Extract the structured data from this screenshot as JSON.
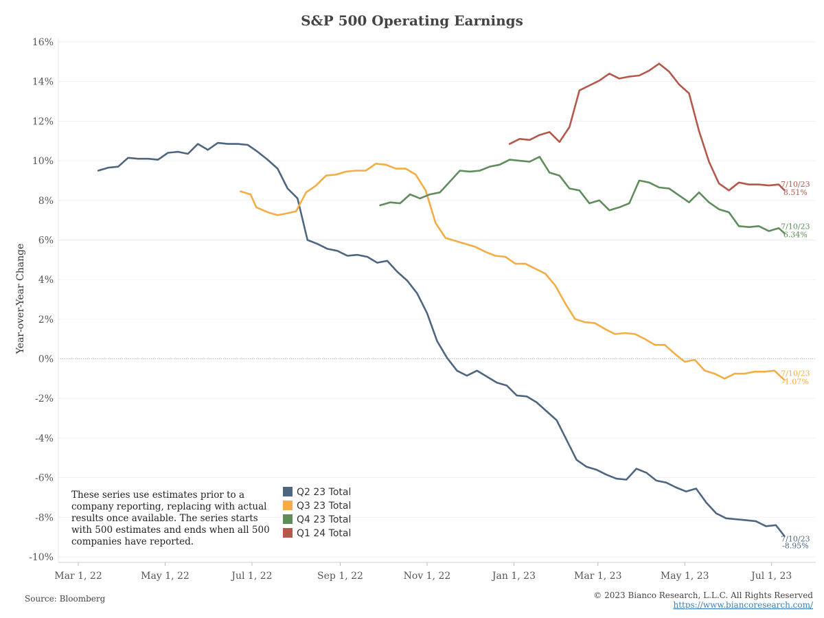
{
  "chart_data": {
    "type": "line",
    "title": "S&P 500 Operating Earnings",
    "xlabel": "",
    "ylabel": "Year-over-Year Change",
    "ylim": [
      -10,
      16
    ],
    "y_ticks": [
      16,
      14,
      12,
      10,
      8,
      6,
      4,
      2,
      0,
      -2,
      -4,
      -6,
      -8,
      -10
    ],
    "y_tick_labels": [
      "16%",
      "14%",
      "12%",
      "10%",
      "8%",
      "6%",
      "4%",
      "2%",
      "0%",
      "-2%",
      "-4%",
      "-6%",
      "-8%",
      "-10%"
    ],
    "x_range": [
      "2022-02-15",
      "2023-08-01"
    ],
    "x_ticks": [
      {
        "date": "2022-03-01",
        "label": "Mar 1, 22"
      },
      {
        "date": "2022-05-01",
        "label": "May 1, 22"
      },
      {
        "date": "2022-07-01",
        "label": "Jul 1, 22"
      },
      {
        "date": "2022-09-01",
        "label": "Sep 1, 22"
      },
      {
        "date": "2022-11-01",
        "label": "Nov 1, 22"
      },
      {
        "date": "2023-01-01",
        "label": "Jan 1, 23"
      },
      {
        "date": "2023-03-01",
        "label": "Mar 1, 23"
      },
      {
        "date": "2023-05-01",
        "label": "May 1, 23"
      },
      {
        "date": "2023-07-01",
        "label": "Jul 1, 23"
      }
    ],
    "grid": true,
    "legend_position": "bottom-center",
    "series": [
      {
        "name": "Q2 23 Total",
        "color": "#4e6580",
        "end_label": "7/10/23",
        "end_value_label": "-8.95%",
        "points": [
          [
            "2022-03-15",
            9.5
          ],
          [
            "2022-03-22",
            9.65
          ],
          [
            "2022-03-29",
            9.7
          ],
          [
            "2022-04-05",
            10.15
          ],
          [
            "2022-04-12",
            10.1
          ],
          [
            "2022-04-19",
            10.1
          ],
          [
            "2022-04-26",
            10.05
          ],
          [
            "2022-05-03",
            10.4
          ],
          [
            "2022-05-10",
            10.45
          ],
          [
            "2022-05-17",
            10.35
          ],
          [
            "2022-05-24",
            10.85
          ],
          [
            "2022-05-31",
            10.55
          ],
          [
            "2022-06-07",
            10.9
          ],
          [
            "2022-06-14",
            10.85
          ],
          [
            "2022-06-21",
            10.85
          ],
          [
            "2022-06-28",
            10.8
          ],
          [
            "2022-07-05",
            10.45
          ],
          [
            "2022-07-12",
            10.05
          ],
          [
            "2022-07-19",
            9.6
          ],
          [
            "2022-07-26",
            8.6
          ],
          [
            "2022-08-02",
            8.1
          ],
          [
            "2022-08-09",
            6.0
          ],
          [
            "2022-08-16",
            5.8
          ],
          [
            "2022-08-23",
            5.55
          ],
          [
            "2022-08-30",
            5.45
          ],
          [
            "2022-09-06",
            5.2
          ],
          [
            "2022-09-13",
            5.25
          ],
          [
            "2022-09-20",
            5.15
          ],
          [
            "2022-09-27",
            4.85
          ],
          [
            "2022-10-04",
            4.95
          ],
          [
            "2022-10-11",
            4.4
          ],
          [
            "2022-10-18",
            3.95
          ],
          [
            "2022-10-25",
            3.3
          ],
          [
            "2022-11-01",
            2.3
          ],
          [
            "2022-11-08",
            0.9
          ],
          [
            "2022-11-15",
            0.05
          ],
          [
            "2022-11-22",
            -0.6
          ],
          [
            "2022-11-29",
            -0.85
          ],
          [
            "2022-12-06",
            -0.6
          ],
          [
            "2022-12-13",
            -0.9
          ],
          [
            "2022-12-20",
            -1.2
          ],
          [
            "2022-12-27",
            -1.35
          ],
          [
            "2023-01-03",
            -1.85
          ],
          [
            "2023-01-10",
            -1.9
          ],
          [
            "2023-01-17",
            -2.2
          ],
          [
            "2023-01-24",
            -2.65
          ],
          [
            "2023-01-31",
            -3.1
          ],
          [
            "2023-02-07",
            -4.1
          ],
          [
            "2023-02-14",
            -5.1
          ],
          [
            "2023-02-21",
            -5.45
          ],
          [
            "2023-02-28",
            -5.6
          ],
          [
            "2023-03-07",
            -5.85
          ],
          [
            "2023-03-14",
            -6.05
          ],
          [
            "2023-03-21",
            -6.1
          ],
          [
            "2023-03-28",
            -5.55
          ],
          [
            "2023-04-04",
            -5.75
          ],
          [
            "2023-04-11",
            -6.15
          ],
          [
            "2023-04-18",
            -6.25
          ],
          [
            "2023-04-25",
            -6.5
          ],
          [
            "2023-05-02",
            -6.7
          ],
          [
            "2023-05-09",
            -6.55
          ],
          [
            "2023-05-16",
            -7.25
          ],
          [
            "2023-05-23",
            -7.8
          ],
          [
            "2023-05-30",
            -8.05
          ],
          [
            "2023-06-06",
            -8.1
          ],
          [
            "2023-06-13",
            -8.15
          ],
          [
            "2023-06-20",
            -8.2
          ],
          [
            "2023-06-27",
            -8.45
          ],
          [
            "2023-07-04",
            -8.4
          ],
          [
            "2023-07-10",
            -8.95
          ]
        ]
      },
      {
        "name": "Q3 23 Total",
        "color": "#f4ac45",
        "end_label": "7/10/23",
        "end_value_label": "-1.07%",
        "points": [
          [
            "2022-06-23",
            8.45
          ],
          [
            "2022-06-30",
            8.3
          ],
          [
            "2022-07-04",
            7.65
          ],
          [
            "2022-07-12",
            7.4
          ],
          [
            "2022-07-19",
            7.25
          ],
          [
            "2022-07-26",
            7.35
          ],
          [
            "2022-08-01",
            7.45
          ],
          [
            "2022-08-08",
            8.4
          ],
          [
            "2022-08-15",
            8.75
          ],
          [
            "2022-08-22",
            9.25
          ],
          [
            "2022-08-29",
            9.3
          ],
          [
            "2022-09-05",
            9.45
          ],
          [
            "2022-09-12",
            9.5
          ],
          [
            "2022-09-19",
            9.5
          ],
          [
            "2022-09-26",
            9.85
          ],
          [
            "2022-10-03",
            9.8
          ],
          [
            "2022-10-10",
            9.6
          ],
          [
            "2022-10-17",
            9.6
          ],
          [
            "2022-10-24",
            9.3
          ],
          [
            "2022-10-31",
            8.5
          ],
          [
            "2022-11-07",
            6.85
          ],
          [
            "2022-11-14",
            6.1
          ],
          [
            "2022-11-21",
            5.95
          ],
          [
            "2022-11-28",
            5.8
          ],
          [
            "2022-12-05",
            5.65
          ],
          [
            "2022-12-12",
            5.4
          ],
          [
            "2022-12-19",
            5.2
          ],
          [
            "2022-12-26",
            5.15
          ],
          [
            "2023-01-02",
            4.8
          ],
          [
            "2023-01-09",
            4.8
          ],
          [
            "2023-01-16",
            4.55
          ],
          [
            "2023-01-23",
            4.3
          ],
          [
            "2023-01-30",
            3.7
          ],
          [
            "2023-02-06",
            2.8
          ],
          [
            "2023-02-13",
            2.0
          ],
          [
            "2023-02-20",
            1.85
          ],
          [
            "2023-02-27",
            1.8
          ],
          [
            "2023-03-06",
            1.5
          ],
          [
            "2023-03-13",
            1.25
          ],
          [
            "2023-03-20",
            1.3
          ],
          [
            "2023-03-27",
            1.25
          ],
          [
            "2023-04-03",
            1.0
          ],
          [
            "2023-04-10",
            0.7
          ],
          [
            "2023-04-17",
            0.7
          ],
          [
            "2023-04-24",
            0.25
          ],
          [
            "2023-05-01",
            -0.15
          ],
          [
            "2023-05-08",
            -0.05
          ],
          [
            "2023-05-15",
            -0.6
          ],
          [
            "2023-05-22",
            -0.75
          ],
          [
            "2023-05-29",
            -1.0
          ],
          [
            "2023-06-05",
            -0.75
          ],
          [
            "2023-06-12",
            -0.75
          ],
          [
            "2023-06-19",
            -0.65
          ],
          [
            "2023-06-26",
            -0.65
          ],
          [
            "2023-07-03",
            -0.6
          ],
          [
            "2023-07-10",
            -1.07
          ]
        ]
      },
      {
        "name": "Q4 23 Total",
        "color": "#5e8c5a",
        "end_label": "7/10/23",
        "end_value_label": "6.34%",
        "points": [
          [
            "2022-09-29",
            7.75
          ],
          [
            "2022-10-06",
            7.9
          ],
          [
            "2022-10-13",
            7.85
          ],
          [
            "2022-10-20",
            8.3
          ],
          [
            "2022-10-27",
            8.1
          ],
          [
            "2022-11-03",
            8.3
          ],
          [
            "2022-11-10",
            8.4
          ],
          [
            "2022-11-17",
            8.95
          ],
          [
            "2022-11-24",
            9.5
          ],
          [
            "2022-12-01",
            9.45
          ],
          [
            "2022-12-08",
            9.5
          ],
          [
            "2022-12-15",
            9.7
          ],
          [
            "2022-12-22",
            9.8
          ],
          [
            "2022-12-29",
            10.05
          ],
          [
            "2023-01-05",
            10.0
          ],
          [
            "2023-01-12",
            9.95
          ],
          [
            "2023-01-19",
            10.2
          ],
          [
            "2023-01-26",
            9.4
          ],
          [
            "2023-02-02",
            9.25
          ],
          [
            "2023-02-09",
            8.6
          ],
          [
            "2023-02-16",
            8.5
          ],
          [
            "2023-02-23",
            7.85
          ],
          [
            "2023-03-02",
            8.0
          ],
          [
            "2023-03-09",
            7.5
          ],
          [
            "2023-03-16",
            7.65
          ],
          [
            "2023-03-23",
            7.85
          ],
          [
            "2023-03-30",
            9.0
          ],
          [
            "2023-04-06",
            8.9
          ],
          [
            "2023-04-13",
            8.65
          ],
          [
            "2023-04-20",
            8.6
          ],
          [
            "2023-04-27",
            8.25
          ],
          [
            "2023-05-04",
            7.9
          ],
          [
            "2023-05-11",
            8.4
          ],
          [
            "2023-05-18",
            7.9
          ],
          [
            "2023-05-25",
            7.55
          ],
          [
            "2023-06-01",
            7.4
          ],
          [
            "2023-06-08",
            6.7
          ],
          [
            "2023-06-15",
            6.65
          ],
          [
            "2023-06-22",
            6.7
          ],
          [
            "2023-06-29",
            6.45
          ],
          [
            "2023-07-06",
            6.6
          ],
          [
            "2023-07-10",
            6.34
          ]
        ]
      },
      {
        "name": "Q1 24 Total",
        "color": "#b5574a",
        "end_label": "7/10/23",
        "end_value_label": "8.51%",
        "points": [
          [
            "2022-12-29",
            10.85
          ],
          [
            "2023-01-05",
            11.1
          ],
          [
            "2023-01-12",
            11.05
          ],
          [
            "2023-01-19",
            11.3
          ],
          [
            "2023-01-26",
            11.45
          ],
          [
            "2023-02-02",
            10.95
          ],
          [
            "2023-02-09",
            11.7
          ],
          [
            "2023-02-16",
            13.55
          ],
          [
            "2023-02-23",
            13.8
          ],
          [
            "2023-03-02",
            14.05
          ],
          [
            "2023-03-09",
            14.4
          ],
          [
            "2023-03-16",
            14.15
          ],
          [
            "2023-03-23",
            14.25
          ],
          [
            "2023-03-30",
            14.3
          ],
          [
            "2023-04-06",
            14.55
          ],
          [
            "2023-04-13",
            14.9
          ],
          [
            "2023-04-20",
            14.5
          ],
          [
            "2023-04-27",
            13.85
          ],
          [
            "2023-05-04",
            13.4
          ],
          [
            "2023-05-11",
            11.5
          ],
          [
            "2023-05-18",
            9.95
          ],
          [
            "2023-05-25",
            8.85
          ],
          [
            "2023-06-01",
            8.5
          ],
          [
            "2023-06-08",
            8.9
          ],
          [
            "2023-06-15",
            8.8
          ],
          [
            "2023-06-22",
            8.8
          ],
          [
            "2023-06-29",
            8.75
          ],
          [
            "2023-07-06",
            8.8
          ],
          [
            "2023-07-10",
            8.51
          ]
        ]
      }
    ]
  },
  "note": {
    "lines": [
      "These series use estimates prior to a",
      "company reporting, replacing with actual",
      "results once available. The series starts",
      "with 500 estimates and ends when all 500",
      "companies have reported."
    ]
  },
  "footer": {
    "source": "Source: Bloomberg",
    "copyright": "© 2023 Bianco Research, L.L.C. All Rights Reserved",
    "link": "https://www.biancoresearch.com/"
  }
}
